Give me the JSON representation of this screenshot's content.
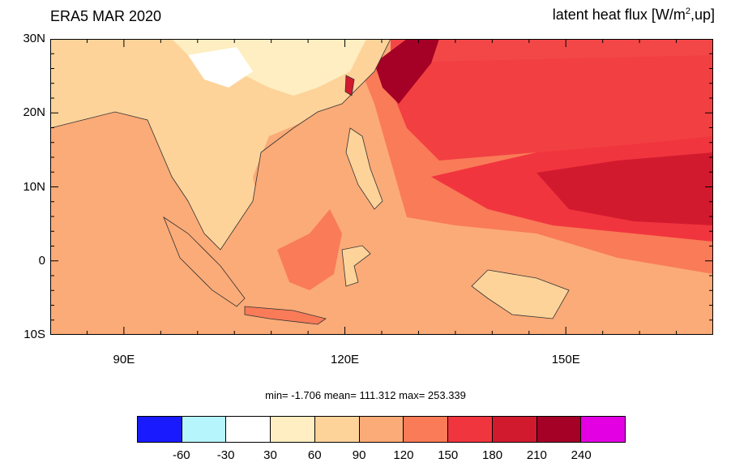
{
  "title_left": "ERA5 MAR 2020",
  "title_right": {
    "prefix": "latent heat flux [W/m",
    "sup": "2",
    "suffix": ",up]"
  },
  "map": {
    "lon_range": [
      80,
      170
    ],
    "lat_range": [
      -10,
      30
    ],
    "y_ticks": [
      {
        "lat": 30,
        "label": "30N"
      },
      {
        "lat": 20,
        "label": "20N"
      },
      {
        "lat": 10,
        "label": "10N"
      },
      {
        "lat": 0,
        "label": "0"
      },
      {
        "lat": -10,
        "label": "10S"
      }
    ],
    "x_ticks": [
      {
        "lon": 90,
        "label": "90E"
      },
      {
        "lon": 120,
        "label": "120E"
      },
      {
        "lon": 150,
        "label": "150E"
      }
    ]
  },
  "stats": {
    "text": "min=  -1.706  mean= 111.312  max= 253.339"
  },
  "colorbar": {
    "colors": [
      "#1a1aff",
      "#b5f5fb",
      "#ffffff",
      "#feeec1",
      "#fdd39a",
      "#fbab77",
      "#f97b58",
      "#f1353e",
      "#d21a2f",
      "#a50026",
      "#e300e3"
    ],
    "labels": [
      "-60",
      "-30",
      "30",
      "60",
      "90",
      "120",
      "150",
      "180",
      "210",
      "240"
    ]
  }
}
